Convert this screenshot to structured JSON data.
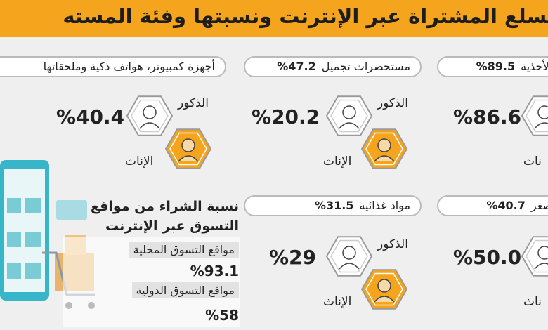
{
  "header": {
    "title": "السلع المشتراة عبر الإنترنت ونسبتها وفئة المسته"
  },
  "cards": [
    {
      "label": "الأحذية",
      "share": "%89.5",
      "value": "%86.6",
      "female_label": "ناث"
    },
    {
      "label": "مستحضرات تجميل",
      "share": "%47.2",
      "value": "%20.2",
      "male_label": "الذكور",
      "female_label": "الإناث"
    },
    {
      "label": "أجهزة كمبيوتر، هواتف ذكية وملحقاتها",
      "value": "%40.4",
      "male_label": "الذكور",
      "female_label": "الإناث"
    },
    {
      "label": "صغر",
      "share": "%40.7",
      "value": "%50.0",
      "female_label": "ناث"
    },
    {
      "label": "مواد غذائية",
      "share": "%31.5",
      "value": "%29",
      "male_label": "الذكور",
      "female_label": "الإناث"
    }
  ],
  "online_sites": {
    "heading": "نسبة الشراء من مواقع التسوق عبر الإنترنت",
    "rows": [
      {
        "label": "مواقع التسوق المحلية",
        "value": "%93.1"
      },
      {
        "label": "مواقع التسوق الدولية",
        "value": "%58"
      }
    ]
  }
}
